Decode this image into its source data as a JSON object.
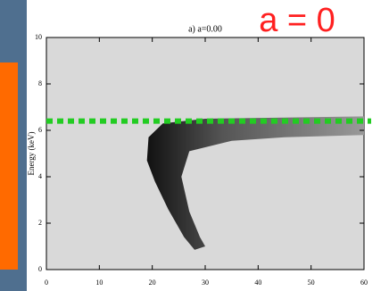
{
  "chart_data": {
    "type": "image",
    "title": "a) a=0.00",
    "annotation": "a = 0",
    "y_label": "Energy (keV)",
    "xlim": [
      0,
      60
    ],
    "xticks": [
      0,
      10,
      20,
      30,
      40,
      50,
      60
    ],
    "ylim": [
      0,
      10
    ],
    "yticks": [
      0,
      2,
      4,
      6,
      8,
      10
    ],
    "hline": {
      "value": 6.4,
      "color": "#22cc22"
    }
  }
}
